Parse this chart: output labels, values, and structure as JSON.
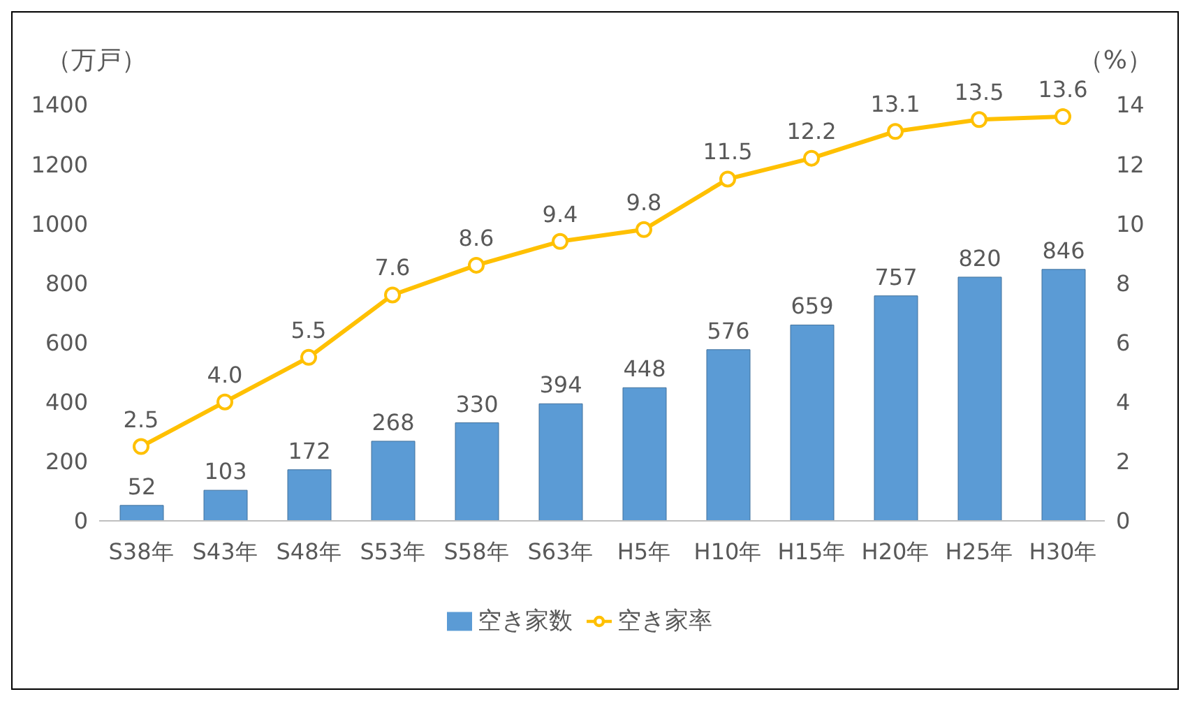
{
  "chart_data": {
    "type": "bar",
    "ylabel": "（万戸）",
    "y2label": "（%）",
    "categories": [
      "S38年",
      "S43年",
      "S48年",
      "S53年",
      "S58年",
      "S63年",
      "H5年",
      "H10年",
      "H15年",
      "H20年",
      "H25年",
      "H30年"
    ],
    "series": [
      {
        "name": "空き家数",
        "color": "#5b9bd5",
        "values": [
          52,
          103,
          172,
          268,
          330,
          394,
          448,
          576,
          659,
          757,
          820,
          846
        ],
        "value_labels": [
          "52",
          "103",
          "172",
          "268",
          "330",
          "394",
          "448",
          "576",
          "659",
          "757",
          "820",
          "846"
        ]
      },
      {
        "name": "空き家率",
        "type": "line",
        "axis": "y2",
        "color": "#ffc000",
        "marker": "circle",
        "values": [
          2.5,
          4.0,
          5.5,
          7.6,
          8.6,
          9.4,
          9.8,
          11.5,
          12.2,
          13.1,
          13.5,
          13.6
        ],
        "value_labels": [
          "2.5",
          "4.0",
          "5.5",
          "7.6",
          "8.6",
          "9.4",
          "9.8",
          "11.5",
          "12.2",
          "13.1",
          "13.5",
          "13.6"
        ]
      }
    ],
    "ylim": [
      0,
      1400
    ],
    "yticks": [
      0,
      200,
      400,
      600,
      800,
      1000,
      1200,
      1400
    ],
    "y2lim": [
      0,
      14
    ],
    "y2ticks": [
      0,
      2,
      4,
      6,
      8,
      10,
      12,
      14
    ],
    "grid": false,
    "legend": "bottom"
  }
}
